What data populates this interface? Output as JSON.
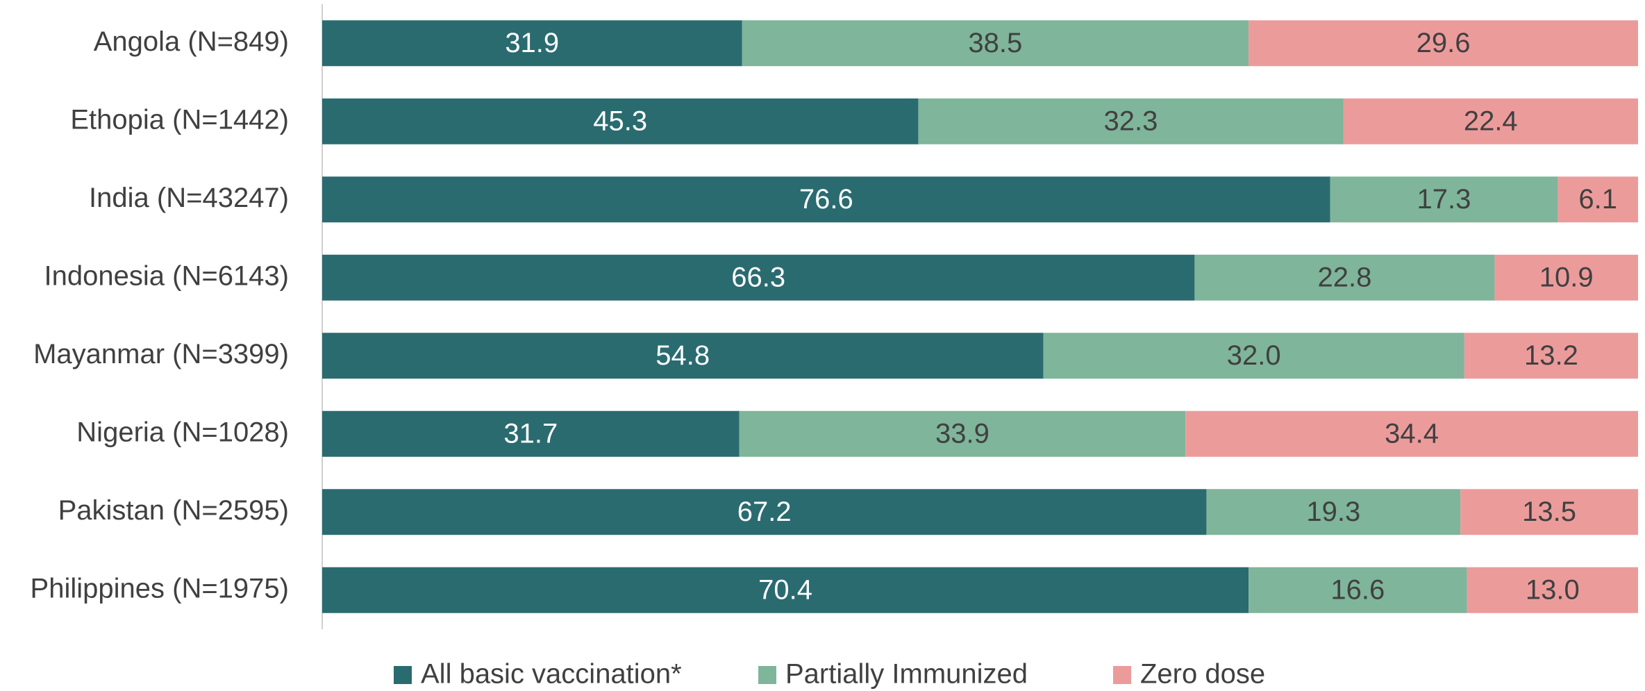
{
  "chart_data": {
    "type": "stacked_bar_horizontal",
    "categories": [
      "Angola (N=849)",
      "Ethopia (N=1442)",
      "India (N=43247)",
      "Indonesia (N=6143)",
      "Mayanmar (N=3399)",
      "Nigeria (N=1028)",
      "Pakistan (N=2595)",
      "Philippines (N=1975)"
    ],
    "xlim": [
      0,
      100
    ],
    "series": [
      {
        "name": "All basic vaccination*",
        "color": "#2a6b70",
        "values": [
          31.9,
          45.3,
          76.6,
          66.3,
          54.8,
          31.7,
          67.2,
          70.4
        ],
        "value_labels": [
          "31.9",
          "45.3",
          "76.6",
          "66.3",
          "54.8",
          "31.7",
          "67.2",
          "70.4"
        ]
      },
      {
        "name": "Partially Immunized",
        "color": "#7fb59a",
        "values": [
          38.5,
          32.3,
          17.3,
          22.8,
          32,
          33.9,
          19.3,
          16.6
        ],
        "value_labels": [
          "38.5",
          "32.3",
          "17.3",
          "22.8",
          "32.0",
          "33.9",
          "19.3",
          "16.6"
        ]
      },
      {
        "name": "Zero dose",
        "color": "#ec9b9b",
        "values": [
          29.6,
          22.4,
          6.1,
          10.9,
          13.2,
          34.4,
          13.5,
          13
        ],
        "value_labels": [
          "29.6",
          "22.4",
          "6.1",
          "10.9",
          "13.2",
          "34.4",
          "13.5",
          "13.0"
        ]
      }
    ],
    "legend": "bottom"
  }
}
